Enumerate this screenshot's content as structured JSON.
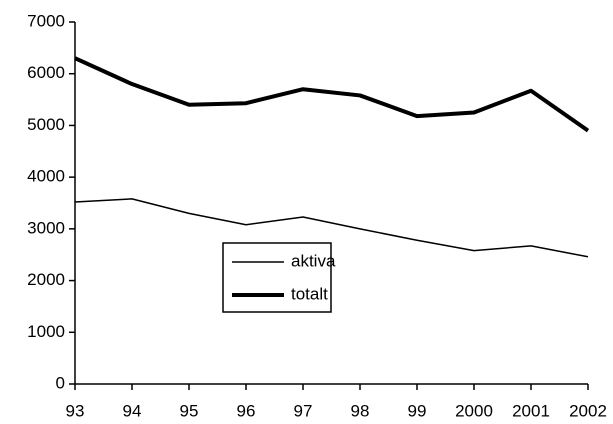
{
  "chart_data": {
    "type": "line",
    "categories": [
      "93",
      "94",
      "95",
      "96",
      "97",
      "98",
      "99",
      "2000",
      "2001",
      "2002"
    ],
    "series": [
      {
        "name": "aktiva",
        "color": "#000000",
        "linewidth": 1.5,
        "values": [
          3520,
          3580,
          3300,
          3080,
          3230,
          3000,
          2780,
          2580,
          2670,
          2460
        ]
      },
      {
        "name": "totalt",
        "color": "#000000",
        "linewidth": 4,
        "values": [
          6300,
          5800,
          5400,
          5430,
          5700,
          5580,
          5180,
          5250,
          5670,
          4900
        ]
      }
    ],
    "ylim": [
      0,
      7000
    ],
    "yticks": [
      0,
      1000,
      2000,
      3000,
      4000,
      5000,
      6000,
      7000
    ],
    "grid": false,
    "legend": "center"
  }
}
